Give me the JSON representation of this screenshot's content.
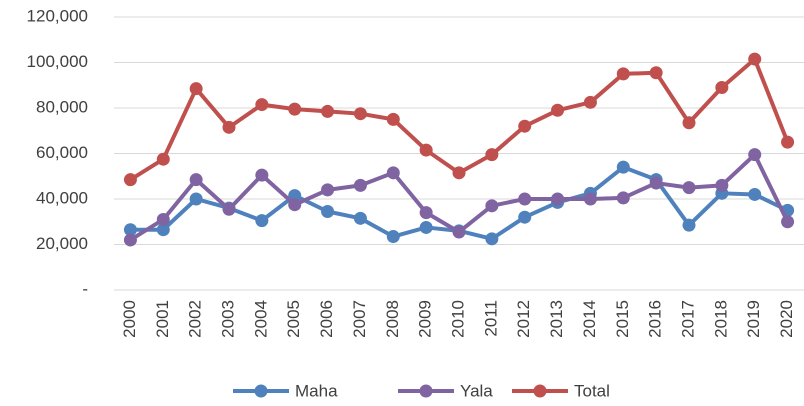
{
  "chart_data": {
    "type": "line",
    "categories": [
      "2000",
      "2001",
      "2002",
      "2003",
      "2004",
      "2005",
      "2006",
      "2007",
      "2008",
      "2009",
      "2010",
      "2011",
      "2012",
      "2013",
      "2014",
      "2015",
      "2016",
      "2017",
      "2018",
      "2019",
      "2020"
    ],
    "series": [
      {
        "name": "Maha",
        "color": "#4f81bd",
        "values": [
          26500,
          26500,
          40000,
          36000,
          30500,
          41500,
          34500,
          31500,
          23500,
          27500,
          26000,
          22500,
          32000,
          38500,
          42500,
          54000,
          48500,
          28500,
          42500,
          42000,
          35000
        ]
      },
      {
        "name": "Yala",
        "color": "#8064a2",
        "values": [
          22000,
          31000,
          48500,
          35500,
          50500,
          37500,
          44000,
          46000,
          51500,
          34000,
          25500,
          37000,
          40000,
          40000,
          40000,
          40500,
          47000,
          45000,
          46000,
          59500,
          30000
        ]
      },
      {
        "name": "Total",
        "color": "#c0504d",
        "values": [
          48500,
          57500,
          88500,
          71500,
          81500,
          79500,
          78500,
          77500,
          75000,
          61500,
          51500,
          59500,
          72000,
          79000,
          82500,
          95000,
          95500,
          73500,
          89000,
          101500,
          65000
        ]
      }
    ],
    "ylim": [
      0,
      120000
    ],
    "yticks": [
      {
        "value": 0,
        "label": "-"
      },
      {
        "value": 20000,
        "label": "20,000"
      },
      {
        "value": 40000,
        "label": "40,000"
      },
      {
        "value": 60000,
        "label": "60,000"
      },
      {
        "value": 80000,
        "label": "80,000"
      },
      {
        "value": 100000,
        "label": "100,000"
      },
      {
        "value": 120000,
        "label": "120,000"
      }
    ],
    "grid": true,
    "legend": "bottom"
  }
}
